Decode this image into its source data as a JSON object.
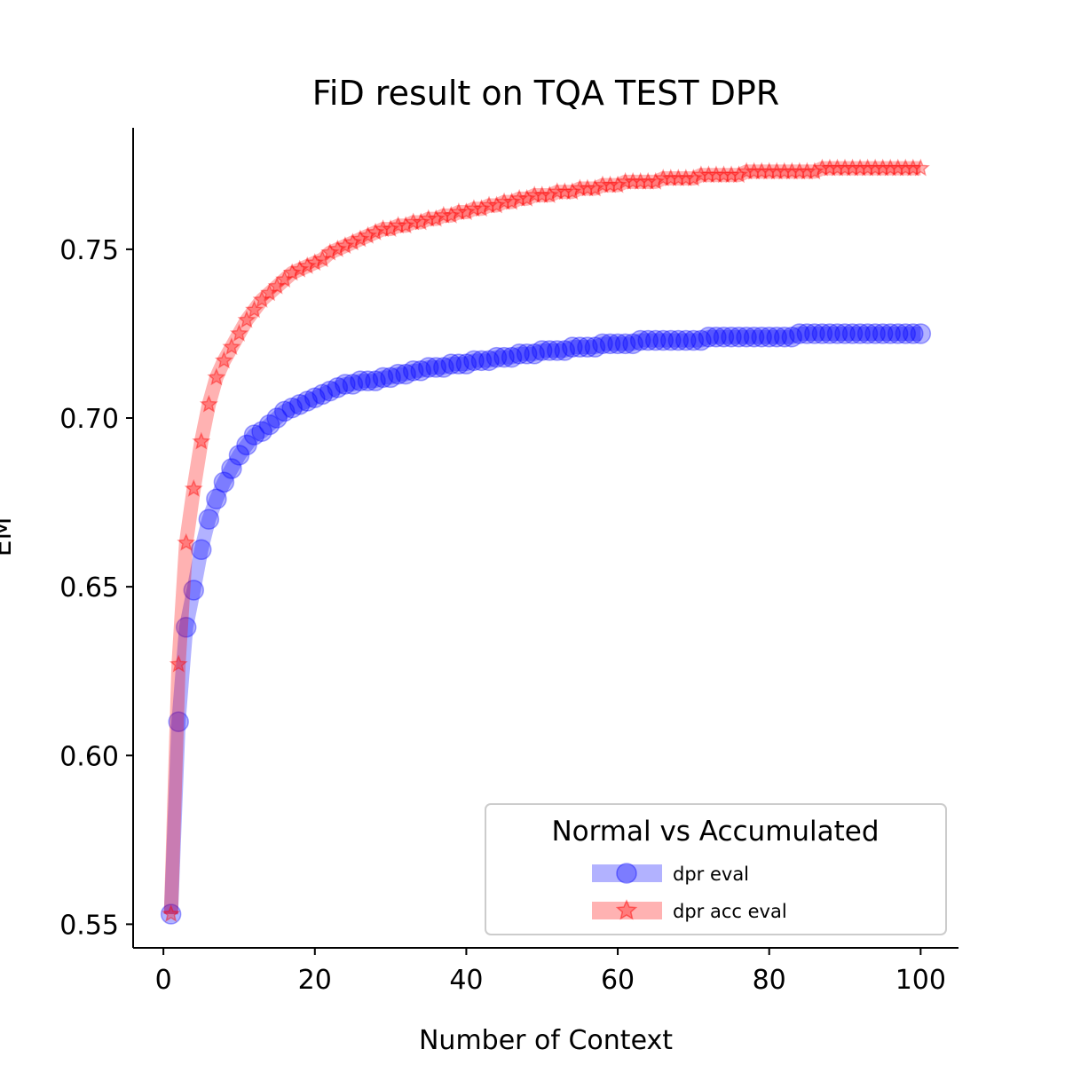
{
  "chart_data": {
    "type": "line",
    "title": "FiD result on TQA TEST DPR",
    "xlabel": "Number of Context",
    "ylabel": "EM",
    "xlim": [
      -4,
      105
    ],
    "ylim": [
      0.543,
      0.786
    ],
    "xticks": [
      0,
      20,
      40,
      60,
      80,
      100
    ],
    "yticks": [
      0.55,
      0.6,
      0.65,
      0.7,
      0.75
    ],
    "xtick_labels": [
      "0",
      "20",
      "40",
      "60",
      "80",
      "100"
    ],
    "ytick_labels": [
      "0.55",
      "0.60",
      "0.65",
      "0.70",
      "0.75"
    ],
    "grid": false,
    "legend": {
      "title": "Normal vs Accumulated",
      "placement": "lower-right"
    },
    "x": [
      1,
      2,
      3,
      4,
      5,
      6,
      7,
      8,
      9,
      10,
      11,
      12,
      13,
      14,
      15,
      16,
      17,
      18,
      19,
      20,
      21,
      22,
      23,
      24,
      25,
      26,
      27,
      28,
      29,
      30,
      31,
      32,
      33,
      34,
      35,
      36,
      37,
      38,
      39,
      40,
      41,
      42,
      43,
      44,
      45,
      46,
      47,
      48,
      49,
      50,
      51,
      52,
      53,
      54,
      55,
      56,
      57,
      58,
      59,
      60,
      61,
      62,
      63,
      64,
      65,
      66,
      67,
      68,
      69,
      70,
      71,
      72,
      73,
      74,
      75,
      76,
      77,
      78,
      79,
      80,
      81,
      82,
      83,
      84,
      85,
      86,
      87,
      88,
      89,
      90,
      91,
      92,
      93,
      94,
      95,
      96,
      97,
      98,
      99,
      100
    ],
    "series": [
      {
        "name": "dpr eval",
        "color": "#0000ff",
        "marker": "circle",
        "values": [
          0.553,
          0.61,
          0.638,
          0.649,
          0.661,
          0.67,
          0.676,
          0.681,
          0.685,
          0.689,
          0.692,
          0.695,
          0.696,
          0.698,
          0.7,
          0.702,
          0.703,
          0.704,
          0.705,
          0.706,
          0.707,
          0.708,
          0.709,
          0.71,
          0.71,
          0.711,
          0.711,
          0.711,
          0.712,
          0.712,
          0.713,
          0.713,
          0.714,
          0.714,
          0.715,
          0.715,
          0.715,
          0.716,
          0.716,
          0.716,
          0.717,
          0.717,
          0.717,
          0.718,
          0.718,
          0.718,
          0.719,
          0.719,
          0.719,
          0.72,
          0.72,
          0.72,
          0.72,
          0.721,
          0.721,
          0.721,
          0.721,
          0.722,
          0.722,
          0.722,
          0.722,
          0.722,
          0.723,
          0.723,
          0.723,
          0.723,
          0.723,
          0.723,
          0.723,
          0.723,
          0.723,
          0.724,
          0.724,
          0.724,
          0.724,
          0.724,
          0.724,
          0.724,
          0.724,
          0.724,
          0.724,
          0.724,
          0.724,
          0.725,
          0.725,
          0.725,
          0.725,
          0.725,
          0.725,
          0.725,
          0.725,
          0.725,
          0.725,
          0.725,
          0.725,
          0.725,
          0.725,
          0.725,
          0.725,
          0.725
        ]
      },
      {
        "name": "dpr acc eval",
        "color": "#ff0000",
        "marker": "star",
        "values": [
          0.553,
          0.627,
          0.663,
          0.679,
          0.693,
          0.704,
          0.712,
          0.717,
          0.721,
          0.725,
          0.729,
          0.732,
          0.735,
          0.737,
          0.739,
          0.741,
          0.743,
          0.744,
          0.745,
          0.746,
          0.747,
          0.749,
          0.75,
          0.751,
          0.752,
          0.753,
          0.754,
          0.755,
          0.756,
          0.756,
          0.757,
          0.757,
          0.758,
          0.758,
          0.759,
          0.759,
          0.76,
          0.76,
          0.761,
          0.761,
          0.762,
          0.762,
          0.763,
          0.763,
          0.764,
          0.764,
          0.765,
          0.765,
          0.766,
          0.766,
          0.766,
          0.767,
          0.767,
          0.767,
          0.768,
          0.768,
          0.768,
          0.769,
          0.769,
          0.769,
          0.77,
          0.77,
          0.77,
          0.77,
          0.77,
          0.771,
          0.771,
          0.771,
          0.771,
          0.771,
          0.772,
          0.772,
          0.772,
          0.772,
          0.772,
          0.772,
          0.773,
          0.773,
          0.773,
          0.773,
          0.773,
          0.773,
          0.773,
          0.773,
          0.773,
          0.773,
          0.774,
          0.774,
          0.774,
          0.774,
          0.774,
          0.774,
          0.774,
          0.774,
          0.774,
          0.774,
          0.774,
          0.774,
          0.774,
          0.774
        ]
      }
    ]
  }
}
